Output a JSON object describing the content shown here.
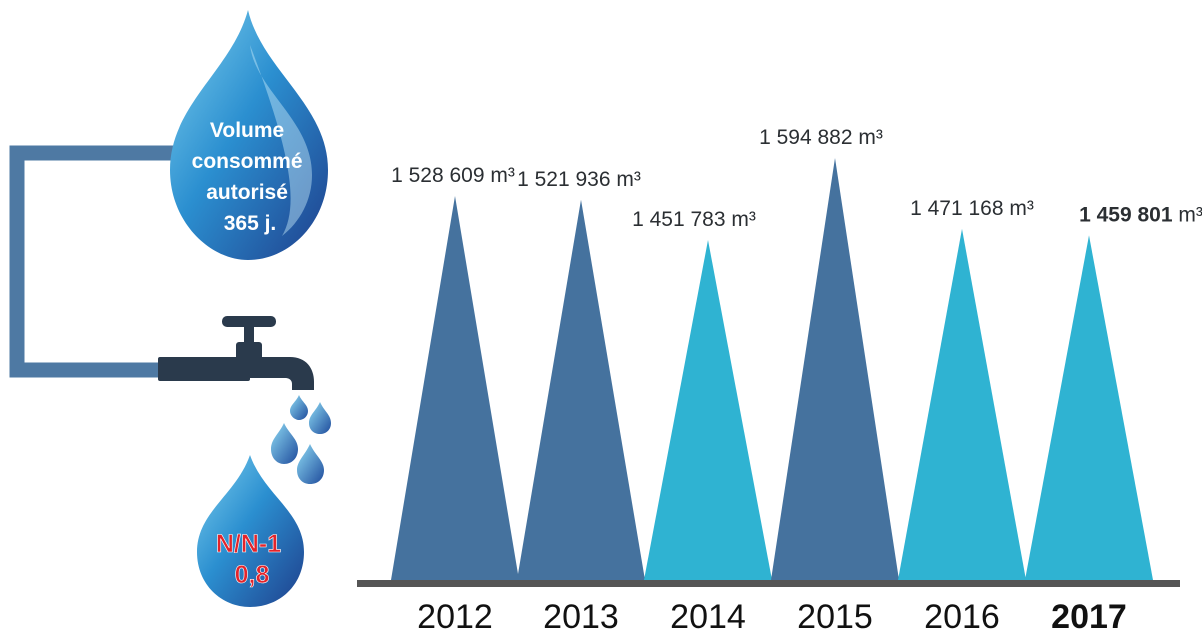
{
  "drop": {
    "lines": [
      "Volume",
      "consommé",
      "autorisé",
      "365 j."
    ]
  },
  "ratio": {
    "label": "N/N-1",
    "value": "0,8"
  },
  "colors": {
    "dark_blue": "#45729e",
    "light_blue": "#2fb3d2",
    "baseline": "#555555",
    "pipe": "#4e79a3",
    "tap": "#2a3a4c",
    "ratio_red": "#e3242b"
  },
  "chart_data": {
    "type": "bar",
    "unit": "m³",
    "categories": [
      "2012",
      "2013",
      "2014",
      "2015",
      "2016",
      "2017"
    ],
    "values": [
      1528609,
      1521936,
      1451783,
      1594882,
      1471168,
      1459801
    ],
    "labels": [
      {
        "num": "1 528 609",
        "unit": " m³"
      },
      {
        "num": "1 521 936",
        "unit": " m³"
      },
      {
        "num": "1 451 783",
        "unit": " m³"
      },
      {
        "num": "1 594 882",
        "unit": " m³"
      },
      {
        "num": "1 471 168",
        "unit": " m³"
      },
      {
        "num": "1 459 801",
        "unit": " m³"
      }
    ],
    "highlight": "2017",
    "bar_colors": [
      "#45729e",
      "#45729e",
      "#2fb3d2",
      "#45729e",
      "#2fb3d2",
      "#2fb3d2"
    ]
  }
}
